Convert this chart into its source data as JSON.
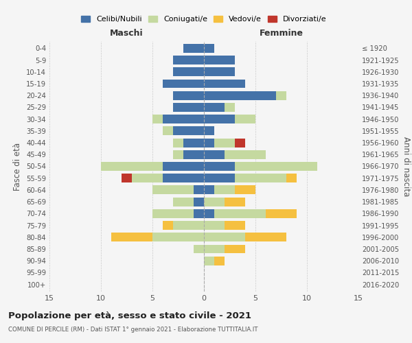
{
  "age_groups": [
    "0-4",
    "5-9",
    "10-14",
    "15-19",
    "20-24",
    "25-29",
    "30-34",
    "35-39",
    "40-44",
    "45-49",
    "50-54",
    "55-59",
    "60-64",
    "65-69",
    "70-74",
    "75-79",
    "80-84",
    "85-89",
    "90-94",
    "95-99",
    "100+"
  ],
  "birth_years": [
    "2016-2020",
    "2011-2015",
    "2006-2010",
    "2001-2005",
    "1996-2000",
    "1991-1995",
    "1986-1990",
    "1981-1985",
    "1976-1980",
    "1971-1975",
    "1966-1970",
    "1961-1965",
    "1956-1960",
    "1951-1955",
    "1946-1950",
    "1941-1945",
    "1936-1940",
    "1931-1935",
    "1926-1930",
    "1921-1925",
    "≤ 1920"
  ],
  "male": {
    "celibi": [
      2,
      3,
      3,
      4,
      3,
      3,
      4,
      3,
      2,
      2,
      4,
      4,
      1,
      1,
      1,
      0,
      0,
      0,
      0,
      0,
      0
    ],
    "coniugati": [
      0,
      0,
      0,
      0,
      0,
      0,
      1,
      1,
      1,
      1,
      6,
      3,
      4,
      2,
      4,
      3,
      5,
      1,
      0,
      0,
      0
    ],
    "vedovi": [
      0,
      0,
      0,
      0,
      0,
      0,
      0,
      0,
      0,
      0,
      0,
      0,
      0,
      0,
      0,
      1,
      4,
      0,
      0,
      0,
      0
    ],
    "divorziati": [
      0,
      0,
      0,
      0,
      0,
      0,
      0,
      0,
      0,
      0,
      0,
      1,
      0,
      0,
      0,
      0,
      0,
      0,
      0,
      0,
      0
    ]
  },
  "female": {
    "nubili": [
      1,
      3,
      3,
      4,
      7,
      2,
      3,
      1,
      1,
      2,
      3,
      3,
      1,
      0,
      1,
      0,
      0,
      0,
      0,
      0,
      0
    ],
    "coniugate": [
      0,
      0,
      0,
      0,
      1,
      1,
      2,
      0,
      2,
      4,
      8,
      5,
      2,
      2,
      5,
      2,
      4,
      2,
      1,
      0,
      0
    ],
    "vedove": [
      0,
      0,
      0,
      0,
      0,
      0,
      0,
      0,
      0,
      0,
      0,
      1,
      2,
      2,
      3,
      2,
      4,
      2,
      1,
      0,
      0
    ],
    "divorziate": [
      0,
      0,
      0,
      0,
      0,
      0,
      0,
      0,
      1,
      0,
      0,
      0,
      0,
      0,
      0,
      0,
      0,
      0,
      0,
      0,
      0
    ]
  },
  "colors": {
    "celibi": "#4472a8",
    "coniugati": "#c5d9a0",
    "vedovi": "#f5c040",
    "divorziati": "#c0362c"
  },
  "xlim": 15,
  "title": "Popolazione per età, sesso e stato civile - 2021",
  "subtitle": "COMUNE DI PERCILE (RM) - Dati ISTAT 1° gennaio 2021 - Elaborazione TUTTITALIA.IT",
  "ylabel_left": "Fasce di età",
  "ylabel_right": "Anni di nascita",
  "xlabel_male": "Maschi",
  "xlabel_female": "Femmine",
  "background_color": "#f5f5f5",
  "legend_labels": [
    "Celibi/Nubili",
    "Coniugati/e",
    "Vedovi/e",
    "Divorziati/e"
  ]
}
